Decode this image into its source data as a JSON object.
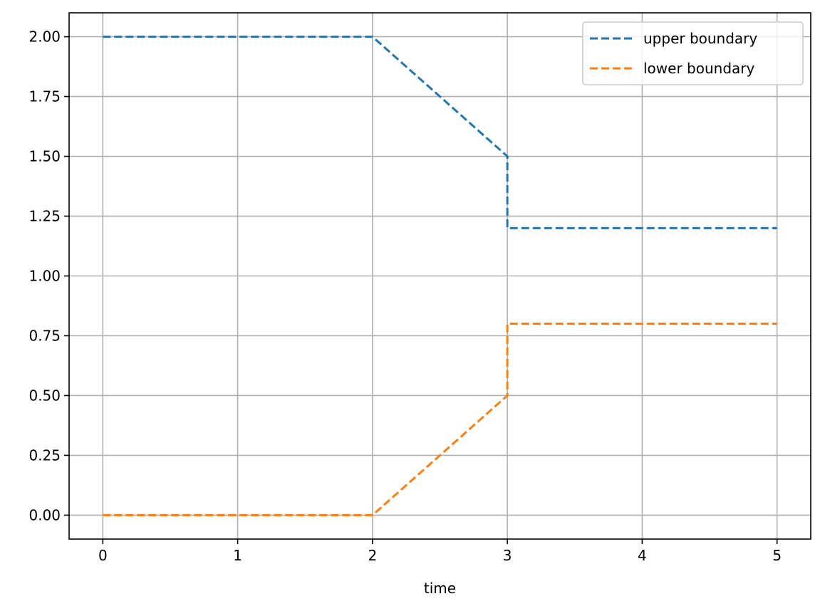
{
  "chart_data": {
    "type": "line",
    "title": "",
    "xlabel": "time",
    "ylabel": "",
    "xlim": [
      -0.25,
      5.25
    ],
    "ylim": [
      -0.1,
      2.1
    ],
    "xticks": [
      0,
      1,
      2,
      3,
      4,
      5
    ],
    "xtick_labels": [
      "0",
      "1",
      "2",
      "3",
      "4",
      "5"
    ],
    "yticks": [
      0.0,
      0.25,
      0.5,
      0.75,
      1.0,
      1.25,
      1.5,
      1.75,
      2.0
    ],
    "ytick_labels": [
      "0.00",
      "0.25",
      "0.50",
      "0.75",
      "1.00",
      "1.25",
      "1.50",
      "1.75",
      "2.00"
    ],
    "grid": true,
    "legend_position": "top-right",
    "series": [
      {
        "name": "upper boundary",
        "color": "#1f77b4",
        "line_style": "dashed",
        "x": [
          0,
          2,
          3,
          3,
          5
        ],
        "y": [
          2.0,
          2.0,
          1.5,
          1.2,
          1.2
        ]
      },
      {
        "name": "lower boundary",
        "color": "#ff7f0e",
        "line_style": "dashed",
        "x": [
          0,
          2,
          3,
          3,
          5
        ],
        "y": [
          0.0,
          0.0,
          0.5,
          0.8,
          0.8
        ]
      }
    ]
  }
}
